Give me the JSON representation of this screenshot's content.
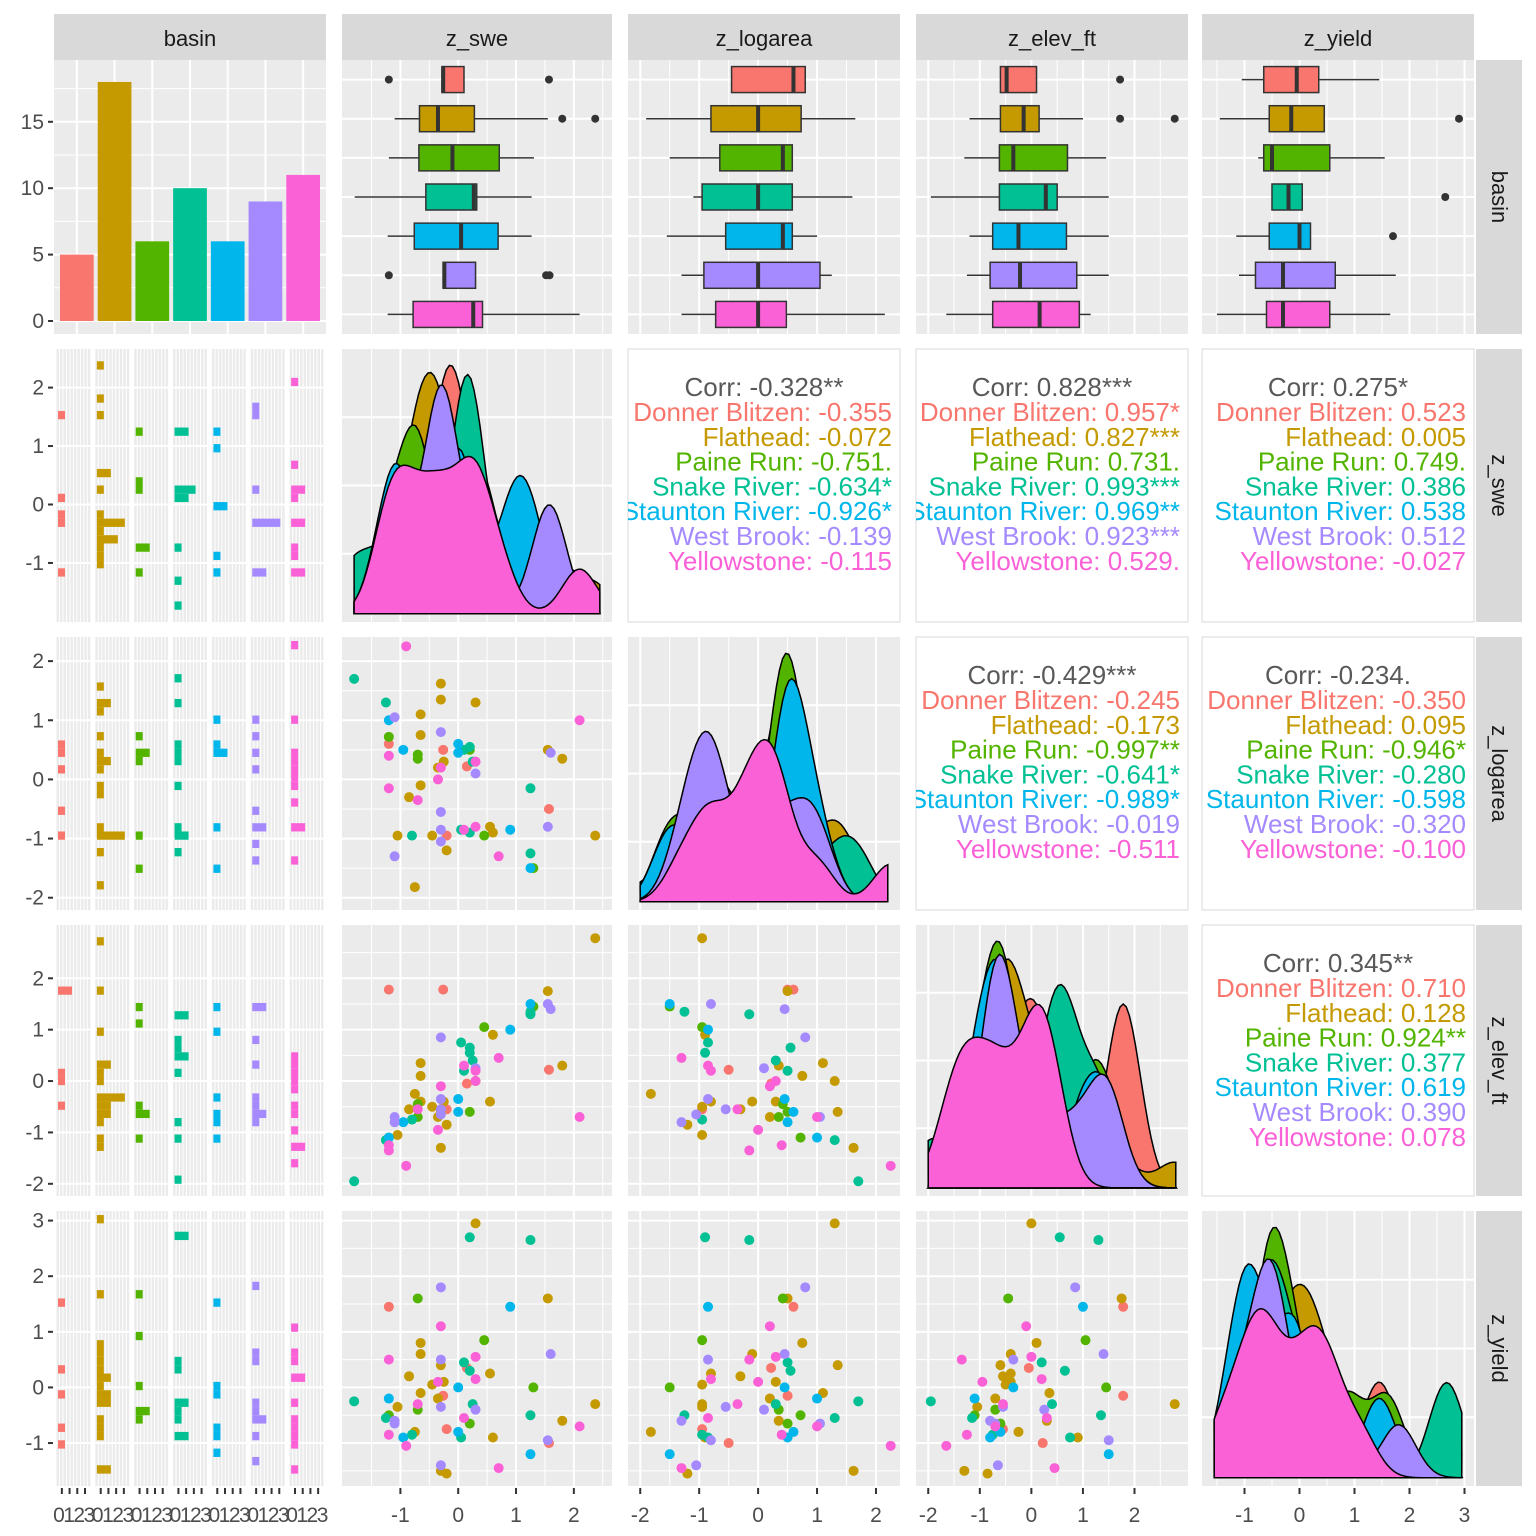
{
  "chart_data": {
    "type": "scatter-matrix",
    "variables": [
      "basin",
      "z_swe",
      "z_logarea",
      "z_elev_ft",
      "z_yield"
    ],
    "groups": [
      "Donner Blitzen",
      "Flathead",
      "Paine Run",
      "Snake River",
      "Staunton River",
      "West Brook",
      "Yellowstone"
    ],
    "group_colors": [
      "#F8766D",
      "#C49A00",
      "#53B400",
      "#00C094",
      "#00B6EB",
      "#A58AFF",
      "#FB61D7"
    ],
    "ranges": {
      "z_swe": [
        -1.8,
        2.45
      ],
      "z_logarea": [
        -2.0,
        2.2
      ],
      "z_elev_ft": [
        -2.0,
        2.8
      ],
      "z_yield": [
        -1.55,
        2.95
      ]
    },
    "ticks": {
      "basin_count": [
        "0",
        "5",
        "10",
        "15"
      ],
      "z_swe": [
        "-1",
        "0",
        "1",
        "2"
      ],
      "z_logarea": [
        "-2",
        "-1",
        "0",
        "1",
        "2"
      ],
      "z_elev_ft": [
        "-2",
        "-1",
        "0",
        "1",
        "2"
      ],
      "z_yield": [
        "-1",
        "0",
        "1",
        "2",
        "3"
      ],
      "basin_bottom": [
        "0123",
        "0123",
        "0123",
        "0123",
        "0123",
        "0123",
        "0123"
      ]
    },
    "basin_counts": [
      5,
      18,
      6,
      10,
      6,
      9,
      11
    ],
    "boxplots": {
      "z_swe": [
        {
          "q1": -0.28,
          "med": -0.26,
          "q3": 0.1,
          "lo": -0.28,
          "hi": 0.1,
          "out": [
            -1.2,
            1.57
          ]
        },
        {
          "q1": -0.67,
          "med": -0.35,
          "q3": 0.28,
          "lo": -1.1,
          "hi": 1.55,
          "out": [
            1.8,
            2.37
          ]
        },
        {
          "q1": -0.68,
          "med": -0.1,
          "q3": 0.71,
          "lo": -1.2,
          "hi": 1.31,
          "out": []
        },
        {
          "q1": -0.56,
          "med": 0.27,
          "q3": 0.32,
          "lo": -1.79,
          "hi": 1.27,
          "out": []
        },
        {
          "q1": -0.76,
          "med": 0.05,
          "q3": 0.69,
          "lo": -1.22,
          "hi": 1.27,
          "out": []
        },
        {
          "q1": -0.26,
          "med": -0.24,
          "q3": 0.3,
          "lo": -0.26,
          "hi": 0.3,
          "out": [
            -1.2,
            1.52,
            1.58
          ]
        },
        {
          "q1": -0.78,
          "med": 0.26,
          "q3": 0.42,
          "lo": -1.22,
          "hi": 2.1,
          "out": []
        }
      ],
      "z_logarea": [
        {
          "q1": -0.45,
          "med": 0.6,
          "q3": 0.8,
          "lo": -0.45,
          "hi": 0.8,
          "out": []
        },
        {
          "q1": -0.8,
          "med": 0.0,
          "q3": 0.73,
          "lo": -1.9,
          "hi": 1.65,
          "out": []
        },
        {
          "q1": -0.65,
          "med": 0.42,
          "q3": 0.58,
          "lo": -1.5,
          "hi": 0.58,
          "out": []
        },
        {
          "q1": -0.95,
          "med": 0.0,
          "q3": 0.58,
          "lo": -1.1,
          "hi": 1.6,
          "out": []
        },
        {
          "q1": -0.55,
          "med": 0.42,
          "q3": 0.58,
          "lo": -1.55,
          "hi": 1.0,
          "out": []
        },
        {
          "q1": -0.92,
          "med": 0.0,
          "q3": 1.05,
          "lo": -1.3,
          "hi": 1.25,
          "out": []
        },
        {
          "q1": -0.72,
          "med": 0.0,
          "q3": 0.48,
          "lo": -1.3,
          "hi": 2.15,
          "out": []
        }
      ],
      "z_elev_ft": [
        {
          "q1": -0.6,
          "med": -0.48,
          "q3": 0.1,
          "lo": -0.6,
          "hi": 0.1,
          "out": [
            1.72
          ]
        },
        {
          "q1": -0.6,
          "med": -0.15,
          "q3": 0.15,
          "lo": -1.2,
          "hi": 1.0,
          "out": [
            1.72,
            2.78
          ]
        },
        {
          "q1": -0.62,
          "med": -0.35,
          "q3": 0.7,
          "lo": -1.3,
          "hi": 1.45,
          "out": []
        },
        {
          "q1": -0.62,
          "med": 0.28,
          "q3": 0.5,
          "lo": -1.95,
          "hi": 1.5,
          "out": []
        },
        {
          "q1": -0.75,
          "med": -0.25,
          "q3": 0.68,
          "lo": -1.2,
          "hi": 1.5,
          "out": []
        },
        {
          "q1": -0.8,
          "med": -0.22,
          "q3": 0.88,
          "lo": -1.25,
          "hi": 1.5,
          "out": []
        },
        {
          "q1": -0.75,
          "med": 0.16,
          "q3": 0.93,
          "lo": -1.65,
          "hi": 1.15,
          "out": []
        }
      ],
      "z_yield": [
        {
          "q1": -0.65,
          "med": -0.05,
          "q3": 0.35,
          "lo": -1.05,
          "hi": 1.45,
          "out": []
        },
        {
          "q1": -0.55,
          "med": -0.15,
          "q3": 0.45,
          "lo": -1.45,
          "hi": 0.45,
          "out": [
            2.9
          ]
        },
        {
          "q1": -0.65,
          "med": -0.5,
          "q3": 0.55,
          "lo": -0.75,
          "hi": 1.55,
          "out": []
        },
        {
          "q1": -0.5,
          "med": -0.2,
          "q3": 0.05,
          "lo": -0.5,
          "hi": 0.05,
          "out": [
            2.65
          ]
        },
        {
          "q1": -0.55,
          "med": 0.0,
          "q3": 0.2,
          "lo": -1.15,
          "hi": 0.2,
          "out": [
            1.7
          ]
        },
        {
          "q1": -0.8,
          "med": -0.3,
          "q3": 0.65,
          "lo": -1.1,
          "hi": 1.75,
          "out": []
        },
        {
          "q1": -0.6,
          "med": -0.3,
          "q3": 0.55,
          "lo": -1.5,
          "hi": 1.65,
          "out": []
        }
      ]
    },
    "points": [
      {
        "g": 0,
        "swe": -1.2,
        "la": 0.6,
        "el": 1.78,
        "yi": 1.45
      },
      {
        "g": 0,
        "swe": -0.26,
        "la": 0.5,
        "el": 1.78,
        "yi": -0.15
      },
      {
        "g": 0,
        "swe": 0.15,
        "la": 0.22,
        "el": -0.05,
        "yi": 0.35
      },
      {
        "g": 0,
        "swe": -0.2,
        "la": -0.95,
        "el": -0.55,
        "yi": -0.75
      },
      {
        "g": 0,
        "swe": 1.57,
        "la": -0.5,
        "el": 0.22,
        "yi": -1.0
      },
      {
        "g": 1,
        "swe": 2.37,
        "la": -0.95,
        "el": 2.78,
        "yi": -0.3
      },
      {
        "g": 1,
        "swe": 1.8,
        "la": 0.35,
        "el": 0.3,
        "yi": -0.6
      },
      {
        "g": 1,
        "swe": 1.55,
        "la": 0.5,
        "el": 1.75,
        "yi": 1.6
      },
      {
        "g": 1,
        "swe": 0.6,
        "la": -0.9,
        "el": 0.9,
        "yi": -0.9
      },
      {
        "g": 1,
        "swe": 0.3,
        "la": 1.3,
        "el": 0.0,
        "yi": 2.95
      },
      {
        "g": 1,
        "swe": -0.3,
        "la": 1.62,
        "el": -1.3,
        "yi": -1.5
      },
      {
        "g": 1,
        "swe": -0.3,
        "la": 1.35,
        "el": -0.6,
        "yi": 0.4
      },
      {
        "g": 1,
        "swe": -0.65,
        "la": 1.1,
        "el": 0.35,
        "yi": -0.1
      },
      {
        "g": 1,
        "swe": -0.65,
        "la": 0.75,
        "el": 0.1,
        "yi": 0.8
      },
      {
        "g": 1,
        "swe": -0.25,
        "la": 0.3,
        "el": -0.4,
        "yi": 0.1
      },
      {
        "g": 1,
        "swe": -0.35,
        "la": 0.2,
        "el": -0.7,
        "yi": -0.2
      },
      {
        "g": 1,
        "swe": -0.65,
        "la": -0.1,
        "el": -0.4,
        "yi": 0.6
      },
      {
        "g": 1,
        "swe": -0.85,
        "la": -0.3,
        "el": -0.55,
        "yi": 0.2
      },
      {
        "g": 1,
        "swe": -1.05,
        "la": -0.95,
        "el": -1.05,
        "yi": -0.35
      },
      {
        "g": 1,
        "swe": -0.45,
        "la": -0.95,
        "el": -0.5,
        "yi": 0.05
      },
      {
        "g": 1,
        "swe": -0.2,
        "la": -1.2,
        "el": -0.85,
        "yi": -1.55
      },
      {
        "g": 1,
        "swe": 0.55,
        "la": -0.8,
        "el": -0.4,
        "yi": 0.25
      },
      {
        "g": 1,
        "swe": -0.75,
        "la": -1.82,
        "el": -0.25,
        "yi": -0.8
      },
      {
        "g": 2,
        "swe": -0.7,
        "la": 0.42,
        "el": -0.45,
        "yi": 1.6
      },
      {
        "g": 2,
        "swe": -0.7,
        "la": 0.35,
        "el": -0.7,
        "yi": -0.4
      },
      {
        "g": 2,
        "swe": 0.2,
        "la": 0.5,
        "el": -0.6,
        "yi": -0.65
      },
      {
        "g": 2,
        "swe": 0.45,
        "la": -0.95,
        "el": 1.05,
        "yi": 0.85
      },
      {
        "g": 2,
        "swe": -1.2,
        "la": 0.72,
        "el": -1.1,
        "yi": -0.5
      },
      {
        "g": 2,
        "swe": 1.3,
        "la": -1.5,
        "el": 1.45,
        "yi": 0.0
      },
      {
        "g": 3,
        "swe": -1.8,
        "la": 1.7,
        "el": -1.95,
        "yi": -0.25
      },
      {
        "g": 3,
        "swe": -1.25,
        "la": 1.3,
        "el": -1.15,
        "yi": -0.55
      },
      {
        "g": 3,
        "swe": -0.8,
        "la": -0.95,
        "el": -0.75,
        "yi": -0.85
      },
      {
        "g": 3,
        "swe": 0.1,
        "la": 0.5,
        "el": 0.2,
        "yi": 0.45
      },
      {
        "g": 3,
        "swe": 0.2,
        "la": -0.9,
        "el": 0.55,
        "yi": 2.7
      },
      {
        "g": 3,
        "swe": 0.25,
        "la": 0.3,
        "el": 0.4,
        "yi": -0.3
      },
      {
        "g": 3,
        "swe": 0.2,
        "la": 0.55,
        "el": 0.65,
        "yi": 0.3
      },
      {
        "g": 3,
        "swe": 1.25,
        "la": -0.15,
        "el": 1.3,
        "yi": 2.65
      },
      {
        "g": 3,
        "swe": 1.25,
        "la": -1.25,
        "el": 1.35,
        "yi": -0.5
      },
      {
        "g": 3,
        "swe": 0.05,
        "la": -0.85,
        "el": 0.75,
        "yi": -0.9
      },
      {
        "g": 4,
        "swe": -1.2,
        "la": 1.0,
        "el": -1.1,
        "yi": -0.2
      },
      {
        "g": 4,
        "swe": -0.95,
        "la": 0.5,
        "el": -0.8,
        "yi": -0.9
      },
      {
        "g": 4,
        "swe": 0.0,
        "la": 0.45,
        "el": -0.35,
        "yi": 0.0
      },
      {
        "g": 4,
        "swe": 0.0,
        "la": 0.6,
        "el": -0.6,
        "yi": -0.8
      },
      {
        "g": 4,
        "swe": 0.9,
        "la": -0.85,
        "el": 1.0,
        "yi": 1.45
      },
      {
        "g": 4,
        "swe": 1.25,
        "la": -1.5,
        "el": 1.5,
        "yi": -1.2
      },
      {
        "g": 5,
        "swe": -1.1,
        "la": 1.05,
        "el": -0.7,
        "yi": -0.65
      },
      {
        "g": 5,
        "swe": -0.3,
        "la": 0.8,
        "el": 0.85,
        "yi": 1.8
      },
      {
        "g": 5,
        "swe": 0.3,
        "la": 0.1,
        "el": 0.25,
        "yi": -0.4
      },
      {
        "g": 5,
        "swe": 1.55,
        "la": -0.8,
        "el": 1.5,
        "yi": -0.95
      },
      {
        "g": 5,
        "swe": -0.3,
        "la": -0.55,
        "el": -0.55,
        "yi": -0.35
      },
      {
        "g": 5,
        "swe": -1.1,
        "la": -1.3,
        "el": -0.8,
        "yi": -0.6
      },
      {
        "g": 5,
        "swe": 1.6,
        "la": 0.45,
        "el": 1.4,
        "yi": 0.6
      },
      {
        "g": 5,
        "swe": -0.3,
        "la": -1.05,
        "el": -0.65,
        "yi": -1.4
      },
      {
        "g": 5,
        "swe": -0.3,
        "la": -0.85,
        "el": -0.35,
        "yi": 0.5
      },
      {
        "g": 6,
        "swe": -0.9,
        "la": 2.25,
        "el": -1.65,
        "yi": -1.05
      },
      {
        "g": 6,
        "swe": -1.2,
        "la": 0.4,
        "el": -1.25,
        "yi": -0.85
      },
      {
        "g": 6,
        "swe": -1.2,
        "la": -0.15,
        "el": -1.35,
        "yi": 0.5
      },
      {
        "g": 6,
        "swe": -0.35,
        "la": 0.0,
        "el": -0.95,
        "yi": 0.1
      },
      {
        "g": 6,
        "swe": 0.3,
        "la": 0.3,
        "el": 0.0,
        "yi": 0.55
      },
      {
        "g": 6,
        "swe": 0.3,
        "la": -0.8,
        "el": 0.2,
        "yi": 0.15
      },
      {
        "g": 6,
        "swe": 0.1,
        "la": -0.85,
        "el": 0.3,
        "yi": -0.55
      },
      {
        "g": 6,
        "swe": 0.7,
        "la": -1.3,
        "el": 0.45,
        "yi": -1.45
      },
      {
        "g": 6,
        "swe": 2.1,
        "la": 1.0,
        "el": -0.7,
        "yi": -0.7
      },
      {
        "g": 6,
        "swe": -0.3,
        "la": 0.2,
        "el": -0.1,
        "yi": 1.1
      },
      {
        "g": 6,
        "swe": -0.7,
        "la": -0.35,
        "el": -0.55,
        "yi": -0.3
      }
    ],
    "correlations": [
      {
        "pair": [
          "z_swe",
          "z_logarea"
        ],
        "overall": "Corr: -0.328**",
        "by_group": [
          "Donner Blitzen: -0.355",
          "Flathead: -0.072",
          "Paine Run: -0.751.",
          "Snake River: -0.634*",
          "Staunton River: -0.926*",
          "West Brook: -0.139",
          "Yellowstone: -0.115"
        ]
      },
      {
        "pair": [
          "z_swe",
          "z_elev_ft"
        ],
        "overall": "Corr: 0.828***",
        "by_group": [
          "Donner Blitzen: 0.957*",
          "Flathead: 0.827***",
          "Paine Run: 0.731.",
          "Snake River: 0.993***",
          "Staunton River: 0.969**",
          "West Brook: 0.923***",
          "Yellowstone: 0.529."
        ]
      },
      {
        "pair": [
          "z_swe",
          "z_yield"
        ],
        "overall": "Corr: 0.275*",
        "by_group": [
          "Donner Blitzen: 0.523",
          "Flathead: 0.005",
          "Paine Run: 0.749.",
          "Snake River: 0.386",
          "Staunton River: 0.538",
          "West Brook: 0.512",
          "Yellowstone: -0.027"
        ]
      },
      {
        "pair": [
          "z_logarea",
          "z_elev_ft"
        ],
        "overall": "Corr: -0.429***",
        "by_group": [
          "Donner Blitzen: -0.245",
          "Flathead: -0.173",
          "Paine Run: -0.997**",
          "Snake River: -0.641*",
          "Staunton River: -0.989*",
          "West Brook: -0.019",
          "Yellowstone: -0.511"
        ]
      },
      {
        "pair": [
          "z_logarea",
          "z_yield"
        ],
        "overall": "Corr: -0.234.",
        "by_group": [
          "Donner Blitzen: -0.350",
          "Flathead: 0.095",
          "Paine Run: -0.946*",
          "Snake River: -0.280",
          "Staunton River: -0.598",
          "West Brook: -0.320",
          "Yellowstone: -0.100"
        ]
      },
      {
        "pair": [
          "z_elev_ft",
          "z_yield"
        ],
        "overall": "Corr: 0.345**",
        "by_group": [
          "Donner Blitzen: 0.710",
          "Flathead: 0.128",
          "Paine Run: 0.924**",
          "Snake River: 0.377",
          "Staunton River: 0.619",
          "West Brook: 0.390",
          "Yellowstone: 0.078"
        ]
      }
    ]
  }
}
